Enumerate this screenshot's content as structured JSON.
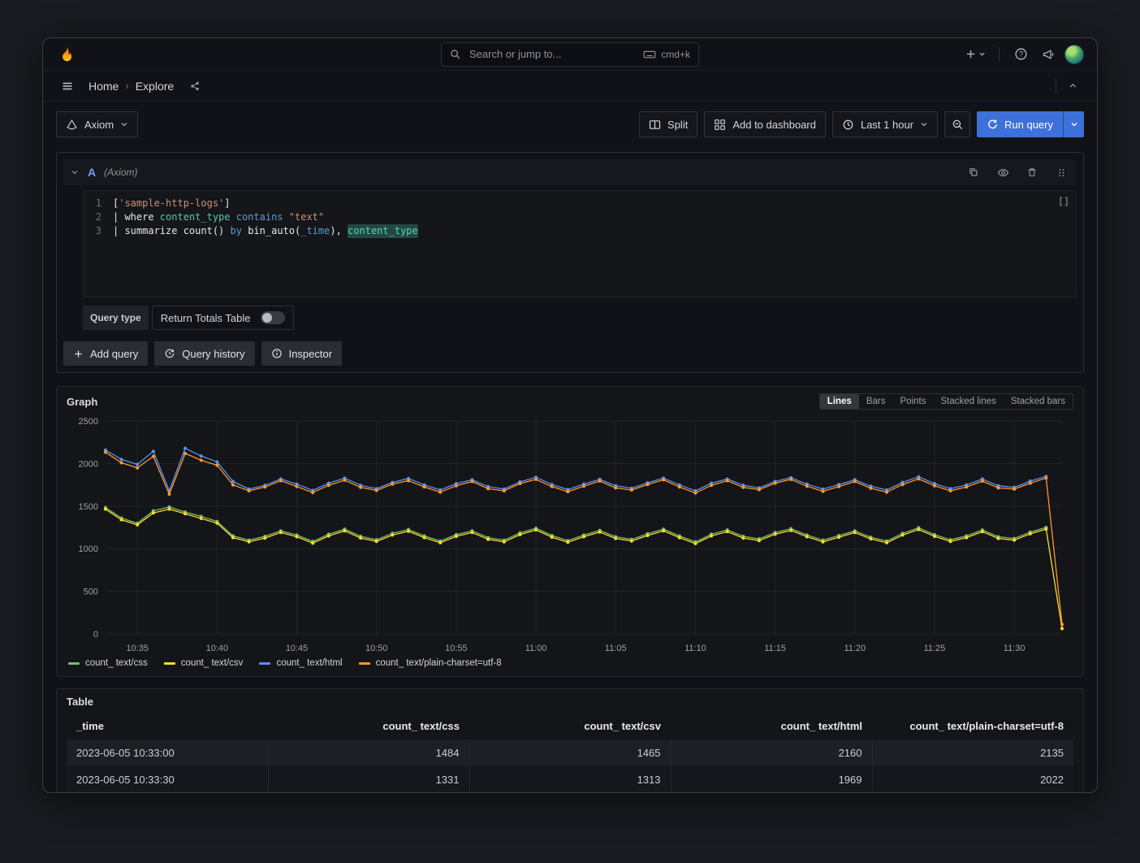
{
  "colors": {
    "accent_blue": "#3d71d9",
    "ref_id_blue": "#6e9fff",
    "highlight_teal": "#4ec9b0",
    "series_green": "#73BF69",
    "series_yellow": "#FADE2A",
    "series_blue": "#5794F2",
    "series_orange": "#FF9830"
  },
  "topnav": {
    "search": {
      "placeholder": "Search or jump to...",
      "shortcut": "cmd+k"
    }
  },
  "breadcrumb": {
    "home": "Home",
    "current": "Explore"
  },
  "toolbar": {
    "datasource_label": "Axiom",
    "split_label": "Split",
    "add_dashboard_label": "Add to dashboard",
    "time_range_label": "Last 1 hour",
    "run_query_label": "Run query"
  },
  "query": {
    "ref_id": "A",
    "ds_hint": "(Axiom)",
    "lines": [
      {
        "num": "1",
        "tokens": [
          {
            "t": "[",
            "c": "plain"
          },
          {
            "t": "'sample-http-logs'",
            "c": "string"
          },
          {
            "t": "]",
            "c": "plain"
          }
        ]
      },
      {
        "num": "2",
        "tokens": [
          {
            "t": "| where ",
            "c": "plain"
          },
          {
            "t": "content_type",
            "c": "type"
          },
          {
            "t": " ",
            "c": "plain"
          },
          {
            "t": "contains",
            "c": "keyword"
          },
          {
            "t": " ",
            "c": "plain"
          },
          {
            "t": "\"text\"",
            "c": "string"
          }
        ]
      },
      {
        "num": "3",
        "tokens": [
          {
            "t": "| summarize ",
            "c": "plain"
          },
          {
            "t": "count()",
            "c": "plain"
          },
          {
            "t": " ",
            "c": "plain"
          },
          {
            "t": "by",
            "c": "keyword"
          },
          {
            "t": " ",
            "c": "plain"
          },
          {
            "t": "bin_auto(",
            "c": "plain"
          },
          {
            "t": "_time",
            "c": "keyword"
          },
          {
            "t": "), ",
            "c": "plain"
          },
          {
            "t": "content_type",
            "c": "type-hl"
          }
        ]
      }
    ],
    "options": {
      "query_type_label": "Query type",
      "toggle_label": "Return Totals Table",
      "toggle_on": false
    },
    "actions": {
      "add": "Add query",
      "history": "Query history",
      "inspector": "Inspector"
    }
  },
  "graph_panel": {
    "title": "Graph",
    "modes": [
      "Lines",
      "Bars",
      "Points",
      "Stacked lines",
      "Stacked bars"
    ],
    "active_mode": "Lines"
  },
  "chart_data": {
    "type": "line",
    "title": "Graph",
    "x_start": "10:33",
    "x_interval_seconds": 60,
    "x_tick_labels": [
      "10:35",
      "10:40",
      "10:45",
      "10:50",
      "10:55",
      "11:00",
      "11:05",
      "11:10",
      "11:15",
      "11:20",
      "11:25",
      "11:30"
    ],
    "x_tick_indices": [
      2,
      7,
      12,
      17,
      22,
      27,
      32,
      37,
      42,
      47,
      52,
      57
    ],
    "ylim": [
      0,
      2500
    ],
    "y_ticks": [
      0,
      500,
      1000,
      1500,
      2000,
      2500
    ],
    "grid": true,
    "legend_position": "bottom",
    "series": [
      {
        "name": "count_ text/css",
        "color": "#73BF69",
        "values": [
          1484,
          1360,
          1300,
          1445,
          1490,
          1430,
          1380,
          1320,
          1150,
          1100,
          1145,
          1210,
          1160,
          1085,
          1170,
          1230,
          1145,
          1105,
          1180,
          1225,
          1150,
          1090,
          1165,
          1210,
          1130,
          1100,
          1185,
          1240,
          1155,
          1095,
          1160,
          1215,
          1140,
          1110,
          1175,
          1230,
          1150,
          1080,
          1170,
          1220,
          1145,
          1115,
          1190,
          1235,
          1160,
          1100,
          1155,
          1210,
          1135,
          1090,
          1180,
          1245,
          1165,
          1105,
          1150,
          1220,
          1140,
          1120,
          1195,
          1250,
          null
        ]
      },
      {
        "name": "count_ text/csv",
        "color": "#FADE2A",
        "values": [
          1465,
          1340,
          1280,
          1420,
          1465,
          1410,
          1355,
          1300,
          1130,
          1080,
          1125,
          1190,
          1140,
          1065,
          1150,
          1210,
          1125,
          1085,
          1160,
          1205,
          1130,
          1070,
          1145,
          1190,
          1110,
          1080,
          1165,
          1220,
          1135,
          1075,
          1140,
          1195,
          1120,
          1090,
          1155,
          1210,
          1130,
          1060,
          1150,
          1200,
          1125,
          1095,
          1170,
          1215,
          1140,
          1080,
          1135,
          1190,
          1115,
          1070,
          1160,
          1225,
          1145,
          1085,
          1130,
          1200,
          1120,
          1100,
          1175,
          1230,
          60
        ]
      },
      {
        "name": "count_ text/html",
        "color": "#5794F2",
        "values": [
          2160,
          2050,
          1990,
          2145,
          1680,
          2180,
          2090,
          2020,
          1790,
          1700,
          1745,
          1820,
          1760,
          1685,
          1770,
          1830,
          1745,
          1705,
          1780,
          1825,
          1750,
          1690,
          1765,
          1810,
          1730,
          1700,
          1785,
          1840,
          1755,
          1695,
          1760,
          1815,
          1740,
          1710,
          1775,
          1830,
          1750,
          1680,
          1770,
          1820,
          1745,
          1715,
          1790,
          1835,
          1760,
          1700,
          1755,
          1810,
          1735,
          1690,
          1780,
          1845,
          1765,
          1705,
          1750,
          1820,
          1740,
          1720,
          1795,
          1850,
          null
        ]
      },
      {
        "name": "count_ text/plain-charset=utf-8",
        "color": "#FF9830",
        "values": [
          2135,
          2010,
          1950,
          2085,
          1640,
          2120,
          2040,
          1980,
          1750,
          1680,
          1725,
          1800,
          1730,
          1660,
          1745,
          1805,
          1720,
          1685,
          1760,
          1800,
          1725,
          1665,
          1740,
          1790,
          1705,
          1680,
          1765,
          1815,
          1730,
          1670,
          1735,
          1795,
          1715,
          1690,
          1755,
          1810,
          1725,
          1655,
          1745,
          1800,
          1720,
          1695,
          1770,
          1815,
          1735,
          1675,
          1730,
          1790,
          1710,
          1665,
          1755,
          1820,
          1740,
          1680,
          1725,
          1795,
          1715,
          1700,
          1770,
          1830,
          110
        ]
      }
    ]
  },
  "table_panel": {
    "title": "Table",
    "headers": [
      "_time",
      "count_ text/css",
      "count_ text/csv",
      "count_ text/html",
      "count_ text/plain-charset=utf-8"
    ],
    "rows": [
      [
        "2023-06-05 10:33:00",
        "1484",
        "1465",
        "2160",
        "2135"
      ],
      [
        "2023-06-05 10:33:30",
        "1331",
        "1313",
        "1969",
        "2022"
      ]
    ]
  }
}
